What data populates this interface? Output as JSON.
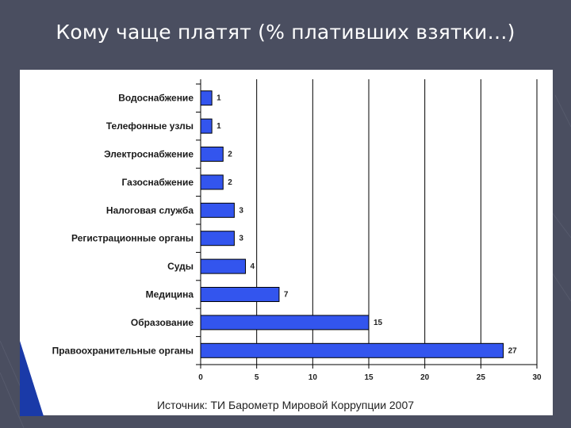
{
  "slide": {
    "title": "Кому чаще платят (% плативших взятки…)",
    "source": "Источник: ТИ Барометр Мировой Коррупции 2007",
    "background_color": "#4a4e60",
    "bar_color": "#3355ee"
  },
  "chart_data": {
    "type": "bar",
    "orientation": "horizontal",
    "categories": [
      "Водоснабжение",
      "Телефонные узлы",
      "Электроснабжение",
      "Газоснабжение",
      "Налоговая служба",
      "Регистрационные органы",
      "Суды",
      "Медицина",
      "Образование",
      "Правоохранительные органы"
    ],
    "values": [
      1,
      1,
      2,
      2,
      3,
      3,
      4,
      7,
      15,
      27
    ],
    "value_labels": [
      "1",
      "1",
      "2",
      "2",
      "3",
      "3",
      "4",
      "7",
      "15",
      "27"
    ],
    "xlim": [
      0,
      30
    ],
    "x_ticks": [
      0,
      5,
      10,
      15,
      20,
      25,
      30
    ],
    "x_tick_labels": [
      "0",
      "5",
      "10",
      "15",
      "20",
      "25",
      "30"
    ],
    "grid": "vertical",
    "legend": "none"
  }
}
